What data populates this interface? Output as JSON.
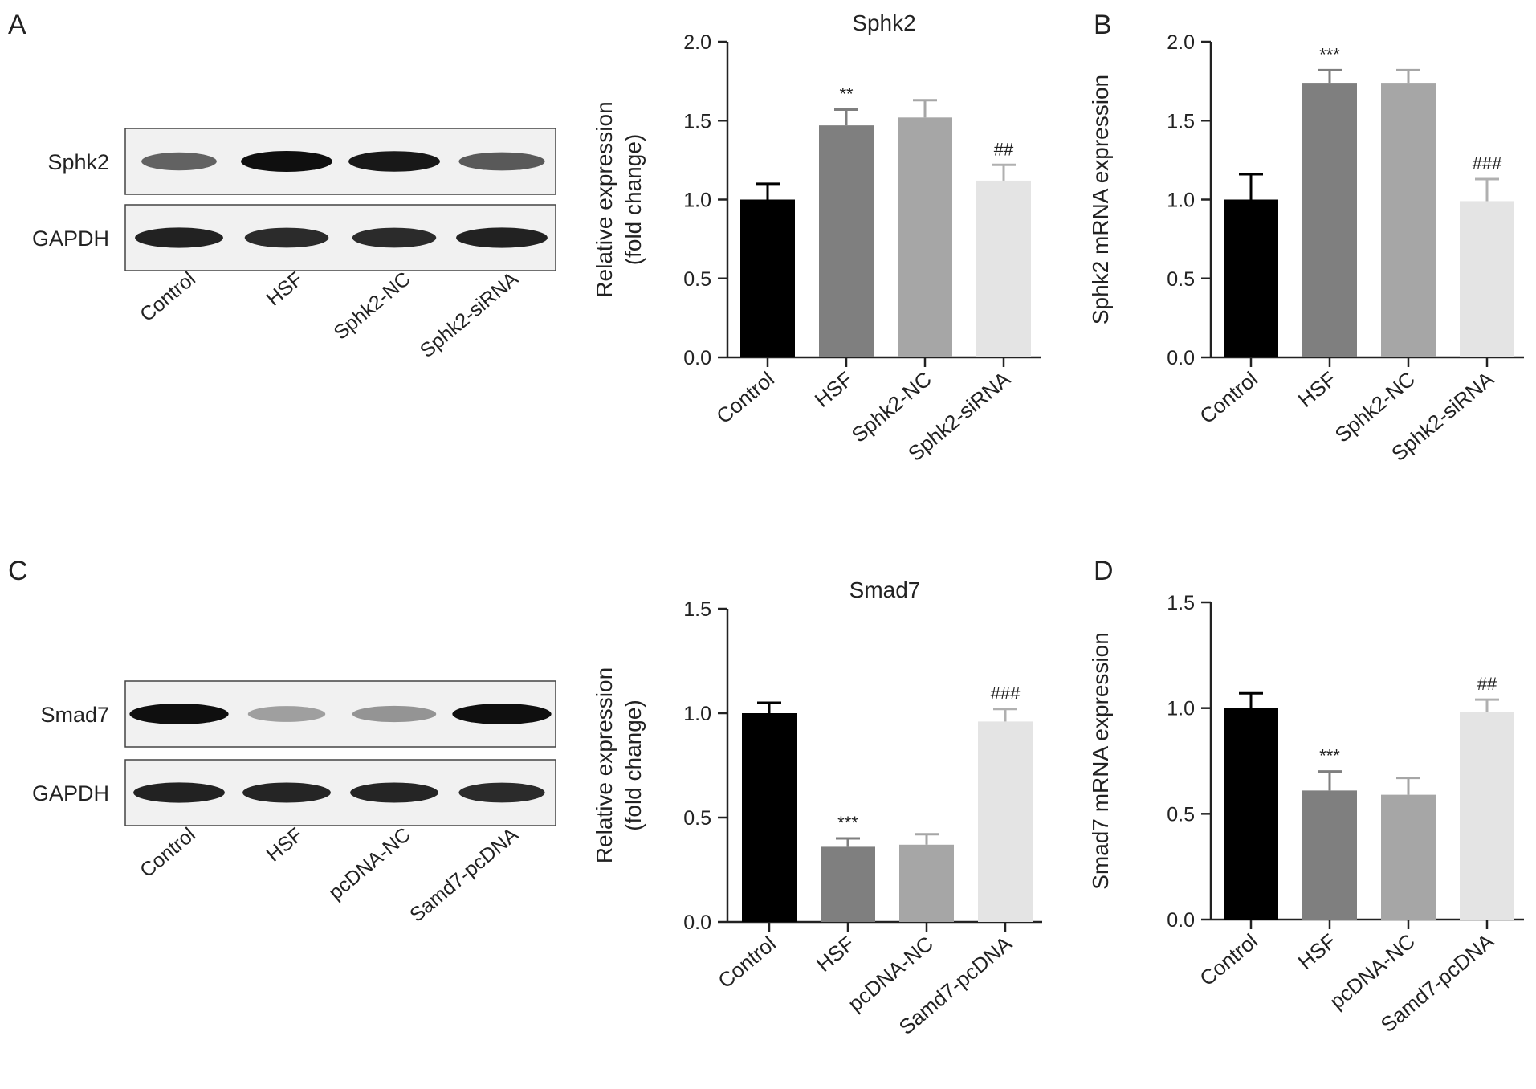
{
  "panel_labels": [
    "A",
    "B",
    "C",
    "D"
  ],
  "blots": [
    {
      "rows": [
        {
          "label": "Sphk2",
          "bands": [
            {
              "lane": "Control",
              "intensity": 0.55,
              "width": 0.7
            },
            {
              "lane": "HSF",
              "intensity": 1.0,
              "width": 0.85
            },
            {
              "lane": "Sphk2-NC",
              "intensity": 0.95,
              "width": 0.85
            },
            {
              "lane": "Sphk2-siRNA",
              "intensity": 0.6,
              "width": 0.8
            }
          ]
        },
        {
          "label": "GAPDH",
          "bands": [
            {
              "lane": "Control",
              "intensity": 0.9,
              "width": 0.82
            },
            {
              "lane": "HSF",
              "intensity": 0.85,
              "width": 0.78
            },
            {
              "lane": "Sphk2-NC",
              "intensity": 0.85,
              "width": 0.78
            },
            {
              "lane": "Sphk2-siRNA",
              "intensity": 0.9,
              "width": 0.85
            }
          ]
        }
      ],
      "lanes": [
        "Control",
        "HSF",
        "Sphk2-NC",
        "Sphk2-siRNA"
      ]
    },
    {
      "rows": [
        {
          "label": "Smad7",
          "bands": [
            {
              "lane": "Control",
              "intensity": 1.0,
              "width": 0.92
            },
            {
              "lane": "HSF",
              "intensity": 0.22,
              "width": 0.72
            },
            {
              "lane": "pcDNA-NC",
              "intensity": 0.28,
              "width": 0.78
            },
            {
              "lane": "Samd7-pcDNA",
              "intensity": 1.0,
              "width": 0.92
            }
          ]
        },
        {
          "label": "GAPDH",
          "bands": [
            {
              "lane": "Control",
              "intensity": 0.9,
              "width": 0.85
            },
            {
              "lane": "HSF",
              "intensity": 0.88,
              "width": 0.82
            },
            {
              "lane": "pcDNA-NC",
              "intensity": 0.88,
              "width": 0.82
            },
            {
              "lane": "Samd7-pcDNA",
              "intensity": 0.85,
              "width": 0.8
            }
          ]
        }
      ],
      "lanes": [
        "Control",
        "HSF",
        "pcDNA-NC",
        "Samd7-pcDNA"
      ]
    }
  ],
  "chart_data": [
    {
      "type": "bar",
      "title": "Sphk2",
      "ylabel": [
        "Relative expression",
        "(fold change)"
      ],
      "categories": [
        "Control",
        "HSF",
        "Sphk2-NC",
        "Sphk2-siRNA"
      ],
      "values": [
        1.0,
        1.47,
        1.52,
        1.12
      ],
      "errors": [
        0.1,
        0.1,
        0.11,
        0.1
      ],
      "annotations": [
        "",
        "**",
        "",
        "##"
      ],
      "ylim": [
        0,
        2.0
      ],
      "yticks": [
        "0.0",
        "0.5",
        "1.0",
        "1.5",
        "2.0"
      ],
      "colors": [
        "#000000",
        "#7f7f7f",
        "#a6a6a6",
        "#e4e4e4"
      ]
    },
    {
      "type": "bar",
      "title": "",
      "ylabel": [
        "Sphk2 mRNA expression"
      ],
      "categories": [
        "Control",
        "HSF",
        "Sphk2-NC",
        "Sphk2-siRNA"
      ],
      "values": [
        1.0,
        1.74,
        1.74,
        0.99
      ],
      "errors": [
        0.16,
        0.08,
        0.08,
        0.14
      ],
      "annotations": [
        "",
        "***",
        "",
        "###"
      ],
      "ylim": [
        0,
        2.0
      ],
      "yticks": [
        "0.0",
        "0.5",
        "1.0",
        "1.5",
        "2.0"
      ],
      "colors": [
        "#000000",
        "#7f7f7f",
        "#a6a6a6",
        "#e4e4e4"
      ]
    },
    {
      "type": "bar",
      "title": "Smad7",
      "ylabel": [
        "Relative expression",
        "(fold change)"
      ],
      "categories": [
        "Control",
        "HSF",
        "pcDNA-NC",
        "Samd7-pcDNA"
      ],
      "values": [
        1.0,
        0.36,
        0.37,
        0.96
      ],
      "errors": [
        0.05,
        0.04,
        0.05,
        0.06
      ],
      "annotations": [
        "",
        "***",
        "",
        "###"
      ],
      "ylim": [
        0,
        1.5
      ],
      "yticks": [
        "0.0",
        "0.5",
        "1.0",
        "1.5"
      ],
      "colors": [
        "#000000",
        "#7f7f7f",
        "#a6a6a6",
        "#e4e4e4"
      ]
    },
    {
      "type": "bar",
      "title": "",
      "ylabel": [
        "Smad7 mRNA expression"
      ],
      "categories": [
        "Control",
        "HSF",
        "pcDNA-NC",
        "Samd7-pcDNA"
      ],
      "values": [
        1.0,
        0.61,
        0.59,
        0.98
      ],
      "errors": [
        0.07,
        0.09,
        0.08,
        0.06
      ],
      "annotations": [
        "",
        "***",
        "",
        "##"
      ],
      "ylim": [
        0,
        1.5
      ],
      "yticks": [
        "0.0",
        "0.5",
        "1.0",
        "1.5"
      ],
      "colors": [
        "#000000",
        "#7f7f7f",
        "#a6a6a6",
        "#e4e4e4"
      ]
    }
  ]
}
